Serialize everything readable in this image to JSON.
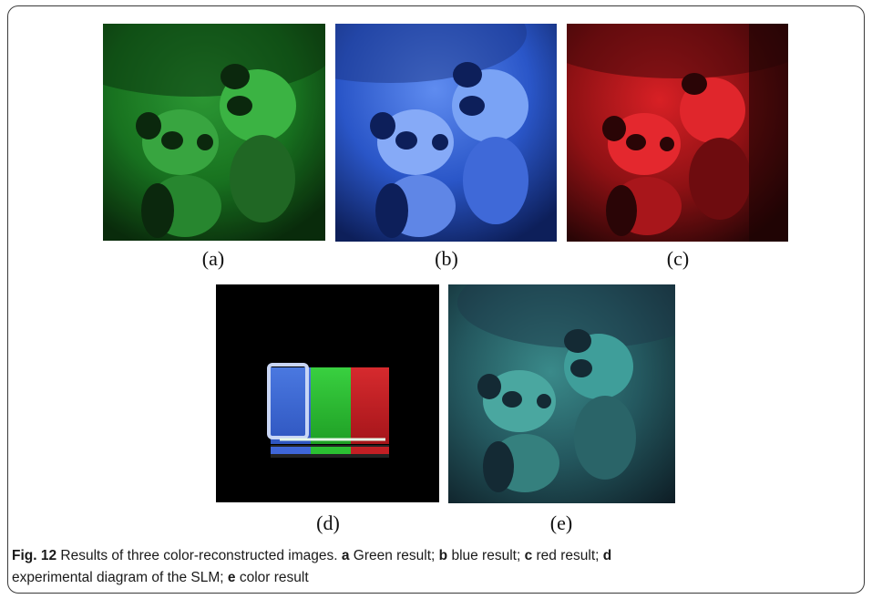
{
  "figure": {
    "panels": [
      {
        "label": "(a)",
        "tint": "#1f9b2a",
        "name": "green"
      },
      {
        "label": "(b)",
        "tint": "#2e5ed8",
        "name": "blue"
      },
      {
        "label": "(c)",
        "tint": "#d11c22",
        "name": "red"
      },
      {
        "label": "(d)",
        "tint": "#000000",
        "name": "slm"
      },
      {
        "label": "(e)",
        "tint": "#2f8a8a",
        "name": "color"
      }
    ],
    "caption": {
      "fig_label": "Fig. 12",
      "title": " Results of three color-reconstructed images. ",
      "a_key": "a",
      "a_text": " Green result; ",
      "b_key": "b",
      "b_text": " blue result; ",
      "c_key": "c",
      "c_text": " red result; ",
      "d_key": "d",
      "d_text": " experimental diagram of the SLM; ",
      "e_key": "e",
      "e_text": " color result"
    }
  }
}
